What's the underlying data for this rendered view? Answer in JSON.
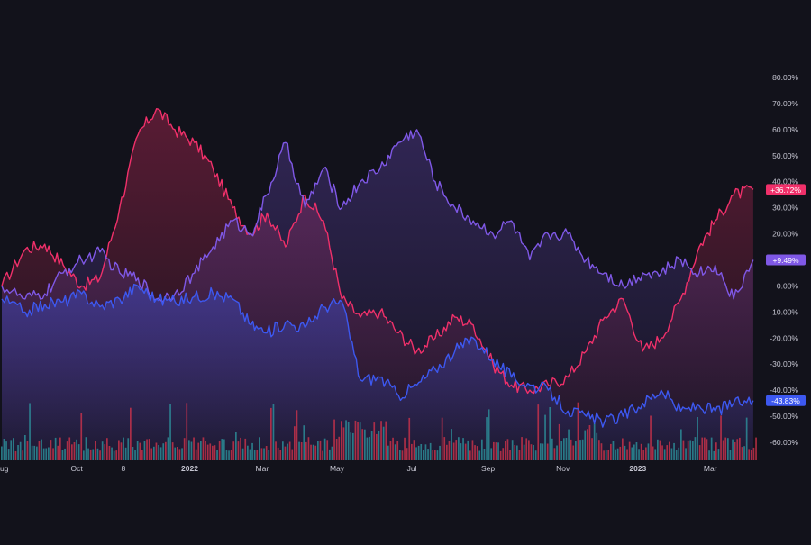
{
  "chart_data": {
    "type": "line",
    "title": "",
    "xlabel": "",
    "ylabel": "",
    "ylim": [
      -60,
      80
    ],
    "grid": false,
    "x_ticks": [
      {
        "label": "ug",
        "date": "2021-08-01"
      },
      {
        "label": "Oct",
        "date": "2021-10-01"
      },
      {
        "label": "8",
        "date": "2021-11-08"
      },
      {
        "label": "2022",
        "date": "2022-01-01",
        "bold": true
      },
      {
        "label": "Mar",
        "date": "2022-03-01"
      },
      {
        "label": "May",
        "date": "2022-05-01"
      },
      {
        "label": "Jul",
        "date": "2022-07-01"
      },
      {
        "label": "Sep",
        "date": "2022-09-01"
      },
      {
        "label": "Nov",
        "date": "2022-11-01"
      },
      {
        "label": "2023",
        "date": "2023-01-01",
        "bold": true
      },
      {
        "label": "Mar",
        "date": "2023-03-01"
      }
    ],
    "y_ticks": [
      "80.00%",
      "70.00%",
      "60.00%",
      "50.00%",
      "40.00%",
      "30.00%",
      "20.00%",
      "10.00%",
      "0.00%",
      "-10.00%",
      "-20.00%",
      "-30.00%",
      "-40.00%",
      "-50.00%",
      "-60.00%"
    ],
    "y_tick_values": [
      80,
      70,
      60,
      50,
      40,
      30,
      20,
      10,
      0,
      -10,
      -20,
      -30,
      -40,
      -50,
      -60
    ],
    "series": [
      {
        "color": "#f0306a",
        "last_label": "+36.72%",
        "x": [
          "2021-08-01",
          "2021-08-20",
          "2021-09-05",
          "2021-09-20",
          "2021-10-05",
          "2021-10-20",
          "2021-11-05",
          "2021-11-20",
          "2021-12-05",
          "2021-12-20",
          "2022-01-05",
          "2022-01-20",
          "2022-02-05",
          "2022-02-20",
          "2022-03-05",
          "2022-03-20",
          "2022-04-05",
          "2022-04-20",
          "2022-05-05",
          "2022-05-20",
          "2022-06-05",
          "2022-06-20",
          "2022-07-05",
          "2022-07-20",
          "2022-08-05",
          "2022-08-20",
          "2022-09-05",
          "2022-09-20",
          "2022-10-05",
          "2022-10-20",
          "2022-11-05",
          "2022-11-20",
          "2022-12-05",
          "2022-12-20",
          "2023-01-05",
          "2023-01-20",
          "2023-02-05",
          "2023-02-20",
          "2023-03-05",
          "2023-03-20",
          "2023-04-05"
        ],
        "values": [
          0,
          14,
          16,
          8,
          0,
          3,
          30,
          58,
          68,
          60,
          55,
          45,
          30,
          20,
          28,
          15,
          35,
          25,
          -5,
          -12,
          -10,
          -18,
          -25,
          -20,
          -12,
          -15,
          -30,
          -38,
          -40,
          -38,
          -35,
          -25,
          -12,
          -5,
          -25,
          -20,
          -5,
          15,
          25,
          35,
          37
        ]
      },
      {
        "color": "#7f58e6",
        "last_label": "+9.49%",
        "x": [
          "2021-08-01",
          "2021-08-20",
          "2021-09-05",
          "2021-09-20",
          "2021-10-05",
          "2021-10-20",
          "2021-11-05",
          "2021-11-20",
          "2021-12-05",
          "2021-12-20",
          "2022-01-05",
          "2022-01-20",
          "2022-02-05",
          "2022-02-20",
          "2022-03-05",
          "2022-03-20",
          "2022-04-05",
          "2022-04-20",
          "2022-05-05",
          "2022-05-20",
          "2022-06-05",
          "2022-06-20",
          "2022-07-05",
          "2022-07-20",
          "2022-08-05",
          "2022-08-20",
          "2022-09-05",
          "2022-09-20",
          "2022-10-05",
          "2022-10-20",
          "2022-11-05",
          "2022-11-20",
          "2022-12-05",
          "2022-12-20",
          "2023-01-05",
          "2023-01-20",
          "2023-02-05",
          "2023-02-20",
          "2023-03-05",
          "2023-03-20",
          "2023-04-05"
        ],
        "values": [
          0,
          -5,
          -3,
          5,
          10,
          13,
          5,
          3,
          -5,
          -3,
          5,
          15,
          25,
          20,
          35,
          55,
          30,
          45,
          30,
          40,
          45,
          55,
          60,
          40,
          30,
          25,
          20,
          25,
          10,
          20,
          20,
          10,
          5,
          0,
          5,
          5,
          10,
          5,
          8,
          -5,
          10
        ]
      },
      {
        "color": "#3d58f0",
        "last_label": "-43.83%",
        "x": [
          "2021-08-01",
          "2021-08-20",
          "2021-09-05",
          "2021-09-20",
          "2021-10-05",
          "2021-10-20",
          "2021-11-05",
          "2021-11-20",
          "2021-12-05",
          "2021-12-20",
          "2022-01-05",
          "2022-01-20",
          "2022-02-05",
          "2022-02-20",
          "2022-03-05",
          "2022-03-20",
          "2022-04-05",
          "2022-04-20",
          "2022-05-05",
          "2022-05-20",
          "2022-06-05",
          "2022-06-20",
          "2022-07-05",
          "2022-07-20",
          "2022-08-05",
          "2022-08-20",
          "2022-09-05",
          "2022-09-20",
          "2022-10-05",
          "2022-10-20",
          "2022-11-05",
          "2022-11-20",
          "2022-12-05",
          "2022-12-20",
          "2023-01-05",
          "2023-01-20",
          "2023-02-05",
          "2023-02-20",
          "2023-03-05",
          "2023-03-20",
          "2023-04-05"
        ],
        "values": [
          -5,
          -10,
          -7,
          -6,
          -3,
          -8,
          -5,
          0,
          -5,
          -6,
          -4,
          -3,
          -5,
          -15,
          -18,
          -14,
          -16,
          -8,
          -6,
          -36,
          -35,
          -42,
          -38,
          -32,
          -25,
          -20,
          -28,
          -35,
          -38,
          -40,
          -48,
          -50,
          -52,
          -50,
          -45,
          -40,
          -48,
          -46,
          -48,
          -45,
          -44
        ]
      }
    ]
  }
}
